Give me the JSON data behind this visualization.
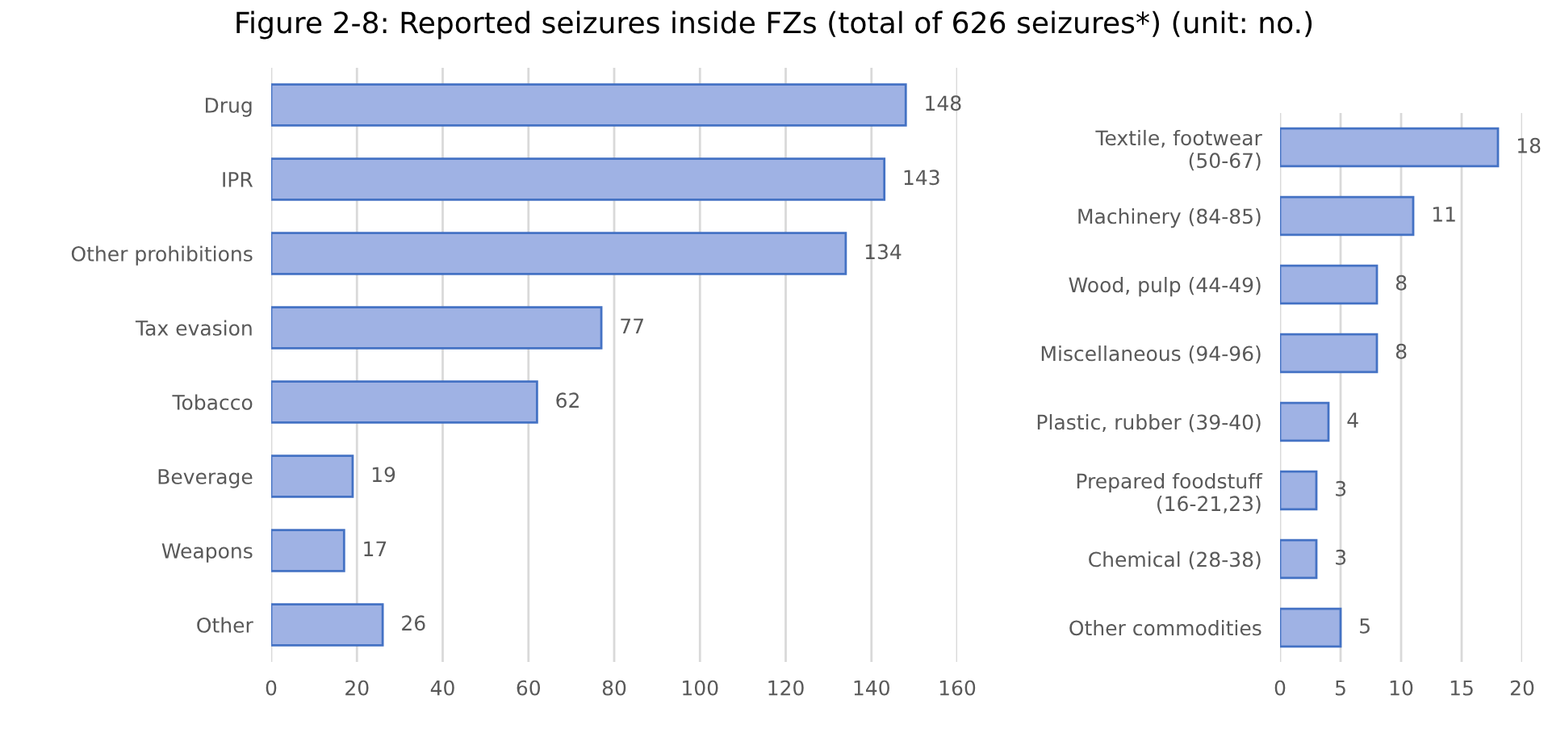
{
  "chart_data": [
    {
      "type": "bar",
      "orientation": "horizontal",
      "title": "Figure 2-8: Reported seizures inside FZs (total of 626 seizures*) (unit: no.)",
      "categories": [
        "Drug",
        "IPR",
        "Other prohibitions",
        "Tax evasion",
        "Tobacco",
        "Beverage",
        "Weapons",
        "Other"
      ],
      "values": [
        148,
        143,
        134,
        77,
        62,
        19,
        17,
        26
      ],
      "color": "#9fb2e4",
      "xlim": [
        0,
        160
      ],
      "xticks": [
        0,
        20,
        40,
        60,
        80,
        100,
        120,
        140,
        160
      ],
      "grid": "x",
      "data_labels": true
    },
    {
      "type": "bar",
      "orientation": "horizontal",
      "categories": [
        "Textile, footwear\n(50-67)",
        "Machinery (84-85)",
        "Wood, pulp (44-49)",
        "Miscellaneous (94-96)",
        "Plastic, rubber (39-40)",
        "Prepared foodstuff\n(16-21,23)",
        "Chemical (28-38)",
        "Other commodities"
      ],
      "values": [
        18,
        11,
        8,
        8,
        4,
        3,
        3,
        5
      ],
      "color": "#9fb2e4",
      "xlim": [
        0,
        20
      ],
      "xticks": [
        0,
        5,
        10,
        15,
        20
      ],
      "grid": "x",
      "data_labels": true
    }
  ]
}
